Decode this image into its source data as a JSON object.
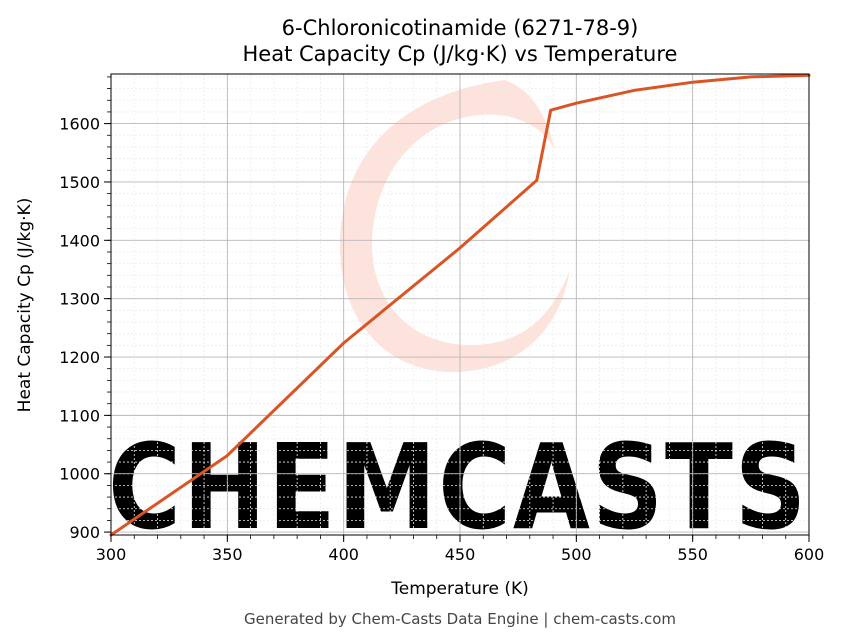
{
  "chart_data": {
    "type": "line",
    "title": "6-Chloronicotinamide (6271-78-9)",
    "subtitle": "Heat Capacity Cp (J/kg·K) vs Temperature",
    "xlabel": "Temperature (K)",
    "ylabel": "Heat Capacity Cp (J/kg·K)",
    "xlim": [
      300,
      600
    ],
    "ylim": [
      895,
      1685
    ],
    "x_ticks": [
      300,
      350,
      400,
      450,
      500,
      550,
      600
    ],
    "y_ticks": [
      900,
      1000,
      1100,
      1200,
      1300,
      1400,
      1500,
      1600
    ],
    "grid": true,
    "line_color": "#d95525",
    "series": [
      {
        "values_xy": [
          [
            300,
            895
          ],
          [
            350,
            1031
          ],
          [
            400,
            1224
          ],
          [
            450,
            1387
          ],
          [
            483,
            1503
          ],
          [
            489,
            1623
          ],
          [
            500,
            1635
          ],
          [
            525,
            1657
          ],
          [
            550,
            1671
          ],
          [
            575,
            1680
          ],
          [
            600,
            1683
          ]
        ]
      }
    ]
  },
  "watermark": {
    "text": "CHEMCASTS",
    "color": "#fde3dc"
  },
  "footer": "Generated by Chem-Casts Data Engine | chem-casts.com"
}
